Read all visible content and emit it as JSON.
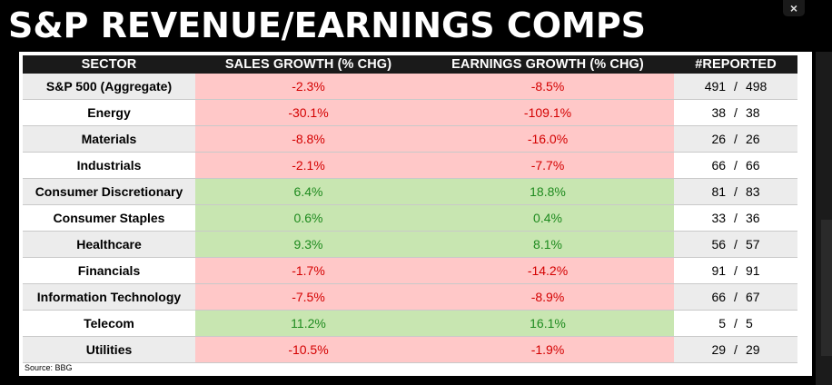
{
  "title": "S&P REVENUE/EARNINGS COMPS",
  "close_label": "×",
  "colors": {
    "header_bg": "#1a1a1a",
    "negative_bg": "#ffc8c8",
    "negative_text": "#d40000",
    "positive_bg": "#c8e6b1",
    "positive_text": "#1e8a1e"
  },
  "chart_data": {
    "type": "table",
    "title": "S&P REVENUE/EARNINGS COMPS",
    "columns": [
      "SECTOR",
      "SALES GROWTH (% CHG)",
      "EARNINGS GROWTH (% CHG)",
      "#REPORTED"
    ],
    "rows": [
      {
        "sector": "S&P 500 (Aggregate)",
        "sales": "-2.3%",
        "earnings": "-8.5%",
        "reported": "491",
        "total": "498",
        "sales_sign": "neg",
        "earnings_sign": "neg"
      },
      {
        "sector": "Energy",
        "sales": "-30.1%",
        "earnings": "-109.1%",
        "reported": "38",
        "total": "38",
        "sales_sign": "neg",
        "earnings_sign": "neg"
      },
      {
        "sector": "Materials",
        "sales": "-8.8%",
        "earnings": "-16.0%",
        "reported": "26",
        "total": "26",
        "sales_sign": "neg",
        "earnings_sign": "neg"
      },
      {
        "sector": "Industrials",
        "sales": "-2.1%",
        "earnings": "-7.7%",
        "reported": "66",
        "total": "66",
        "sales_sign": "neg",
        "earnings_sign": "neg"
      },
      {
        "sector": "Consumer Discretionary",
        "sales": "6.4%",
        "earnings": "18.8%",
        "reported": "81",
        "total": "83",
        "sales_sign": "pos",
        "earnings_sign": "pos"
      },
      {
        "sector": "Consumer Staples",
        "sales": "0.6%",
        "earnings": "0.4%",
        "reported": "33",
        "total": "36",
        "sales_sign": "pos",
        "earnings_sign": "pos"
      },
      {
        "sector": "Healthcare",
        "sales": "9.3%",
        "earnings": "8.1%",
        "reported": "56",
        "total": "57",
        "sales_sign": "pos",
        "earnings_sign": "pos"
      },
      {
        "sector": "Financials",
        "sales": "-1.7%",
        "earnings": "-14.2%",
        "reported": "91",
        "total": "91",
        "sales_sign": "neg",
        "earnings_sign": "neg"
      },
      {
        "sector": "Information Technology",
        "sales": "-7.5%",
        "earnings": "-8.9%",
        "reported": "66",
        "total": "67",
        "sales_sign": "neg",
        "earnings_sign": "neg"
      },
      {
        "sector": "Telecom",
        "sales": "11.2%",
        "earnings": "16.1%",
        "reported": "5",
        "total": "5",
        "sales_sign": "pos",
        "earnings_sign": "pos"
      },
      {
        "sector": "Utilities",
        "sales": "-10.5%",
        "earnings": "-1.9%",
        "reported": "29",
        "total": "29",
        "sales_sign": "neg",
        "earnings_sign": "neg"
      }
    ],
    "reported_separator": "/"
  },
  "source": "Source: BBG"
}
